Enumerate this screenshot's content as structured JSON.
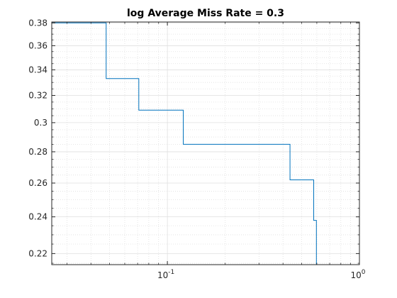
{
  "chart_data": {
    "type": "line",
    "title": "log Average Miss Rate = 0.3",
    "xlabel": "",
    "ylabel": "",
    "xscale": "log",
    "yscale": "log",
    "xlim": [
      0.025,
      1
    ],
    "ylim": [
      0.2143,
      0.3808
    ],
    "grid": true,
    "minor_grid": true,
    "series": [
      {
        "line_style": "stairs",
        "points": [
          {
            "x": 0.025,
            "y": 0.38
          },
          {
            "x": 0.048,
            "y": 0.38
          },
          {
            "x": 0.048,
            "y": 0.333
          },
          {
            "x": 0.071,
            "y": 0.333
          },
          {
            "x": 0.071,
            "y": 0.309
          },
          {
            "x": 0.121,
            "y": 0.309
          },
          {
            "x": 0.121,
            "y": 0.285
          },
          {
            "x": 0.435,
            "y": 0.285
          },
          {
            "x": 0.435,
            "y": 0.262
          },
          {
            "x": 0.578,
            "y": 0.262
          },
          {
            "x": 0.578,
            "y": 0.238
          },
          {
            "x": 0.597,
            "y": 0.238
          },
          {
            "x": 0.597,
            "y": 0.2143
          },
          {
            "x": 0.83,
            "y": 0.2143
          }
        ]
      }
    ],
    "yticks": [
      {
        "value": 0.22,
        "label": "0.22"
      },
      {
        "value": 0.24,
        "label": "0.24"
      },
      {
        "value": 0.26,
        "label": "0.26"
      },
      {
        "value": 0.28,
        "label": "0.28"
      },
      {
        "value": 0.3,
        "label": "0.3"
      },
      {
        "value": 0.32,
        "label": "0.32"
      },
      {
        "value": 0.34,
        "label": "0.34"
      },
      {
        "value": 0.36,
        "label": "0.36"
      },
      {
        "value": 0.38,
        "label": "0.38"
      }
    ],
    "xticks": [
      {
        "value": 0.1,
        "base": "10",
        "exp": "-1"
      },
      {
        "value": 1,
        "base": "10",
        "exp": "0"
      }
    ],
    "colors": {
      "line": "#0072BD",
      "axes": "#262626",
      "grid": "#dfdfdf"
    }
  }
}
